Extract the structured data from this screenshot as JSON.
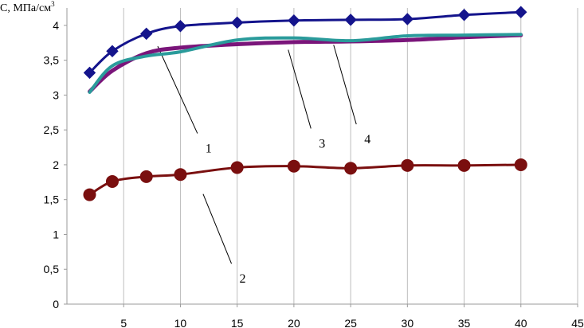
{
  "chart_data": {
    "type": "line",
    "ylabel": "С, МПа/см",
    "ylabel_sup": "3",
    "xlabel": "",
    "xlim": [
      0,
      45
    ],
    "ylim": [
      0,
      4.25
    ],
    "x_ticks": [
      "5",
      "10",
      "15",
      "20",
      "25",
      "30",
      "35",
      "40",
      "45"
    ],
    "y_ticks": [
      "0",
      "0,5",
      "1",
      "1,5",
      "2",
      "2,5",
      "3",
      "3,5",
      "4"
    ],
    "grid": "vertical",
    "series": [
      {
        "name": "1",
        "color": "#14148c",
        "marker": "diamond",
        "x": [
          2,
          4,
          7,
          10,
          15,
          20,
          25,
          30,
          35,
          40
        ],
        "y": [
          3.32,
          3.63,
          3.88,
          3.99,
          4.04,
          4.07,
          4.08,
          4.09,
          4.15,
          4.19
        ]
      },
      {
        "name": "2",
        "color": "#7a0f0f",
        "marker": "circle",
        "x": [
          2,
          4,
          7,
          10,
          15,
          20,
          25,
          30,
          35,
          40
        ],
        "y": [
          1.57,
          1.76,
          1.83,
          1.86,
          1.96,
          1.98,
          1.95,
          1.99,
          1.99,
          2.0
        ]
      },
      {
        "name": "3",
        "color": "#7a157a",
        "marker": "none",
        "x": [
          2,
          4,
          7,
          10,
          15,
          20,
          25,
          30,
          35,
          40
        ],
        "y": [
          3.05,
          3.35,
          3.6,
          3.68,
          3.73,
          3.76,
          3.77,
          3.79,
          3.83,
          3.86
        ]
      },
      {
        "name": "4",
        "color": "#2a9b9b",
        "marker": "none",
        "x": [
          2,
          4,
          7,
          10,
          15,
          20,
          25,
          30,
          35,
          40
        ],
        "y": [
          3.04,
          3.42,
          3.56,
          3.62,
          3.79,
          3.82,
          3.78,
          3.85,
          3.86,
          3.87
        ]
      }
    ],
    "annotations": [
      {
        "text": "1",
        "point": [
          8,
          3.7
        ],
        "at": [
          11.5,
          2.45
        ]
      },
      {
        "text": "2",
        "point": [
          12,
          1.58
        ],
        "at": [
          14.5,
          0.58
        ]
      },
      {
        "text": "3",
        "point": [
          19.5,
          3.65
        ],
        "at": [
          21.5,
          2.52
        ]
      },
      {
        "text": "4",
        "point": [
          23.5,
          3.72
        ],
        "at": [
          25.5,
          2.58
        ]
      }
    ]
  }
}
